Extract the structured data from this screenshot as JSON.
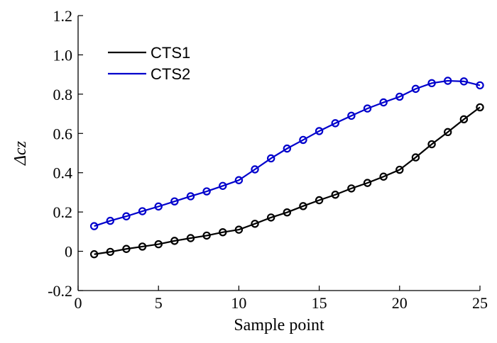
{
  "chart_data": {
    "type": "line",
    "title": "",
    "xlabel": "Sample point",
    "ylabel": "Δcz",
    "xlim": [
      0,
      25
    ],
    "ylim": [
      -0.2,
      1.2
    ],
    "xticks": [
      0,
      5,
      10,
      15,
      20,
      25
    ],
    "yticks": [
      -0.2,
      0,
      0.2,
      0.4,
      0.6,
      0.8,
      1.0,
      1.2
    ],
    "xtick_labels": [
      "0",
      "5",
      "10",
      "15",
      "20",
      "25"
    ],
    "ytick_labels": [
      "-0.2",
      "0",
      "0.2",
      "0.4",
      "0.6",
      "0.8",
      "1.0",
      "1.2"
    ],
    "legend_position": "top-left",
    "x": [
      1,
      2,
      3,
      4,
      5,
      6,
      7,
      8,
      9,
      10,
      11,
      12,
      13,
      14,
      15,
      16,
      17,
      18,
      19,
      20,
      21,
      22,
      23,
      24,
      25
    ],
    "series": [
      {
        "name": "CTS1",
        "color": "#000000",
        "marker": "circle",
        "values": [
          -0.015,
          -0.003,
          0.012,
          0.024,
          0.036,
          0.053,
          0.067,
          0.08,
          0.097,
          0.11,
          0.14,
          0.172,
          0.198,
          0.23,
          0.26,
          0.288,
          0.32,
          0.348,
          0.38,
          0.415,
          0.478,
          0.545,
          0.607,
          0.672,
          0.733
        ]
      },
      {
        "name": "CTS2",
        "color": "#0000cc",
        "marker": "circle",
        "values": [
          0.128,
          0.155,
          0.178,
          0.204,
          0.228,
          0.254,
          0.28,
          0.305,
          0.333,
          0.362,
          0.417,
          0.473,
          0.523,
          0.567,
          0.612,
          0.652,
          0.69,
          0.727,
          0.758,
          0.787,
          0.827,
          0.856,
          0.868,
          0.865,
          0.845
        ]
      }
    ]
  }
}
